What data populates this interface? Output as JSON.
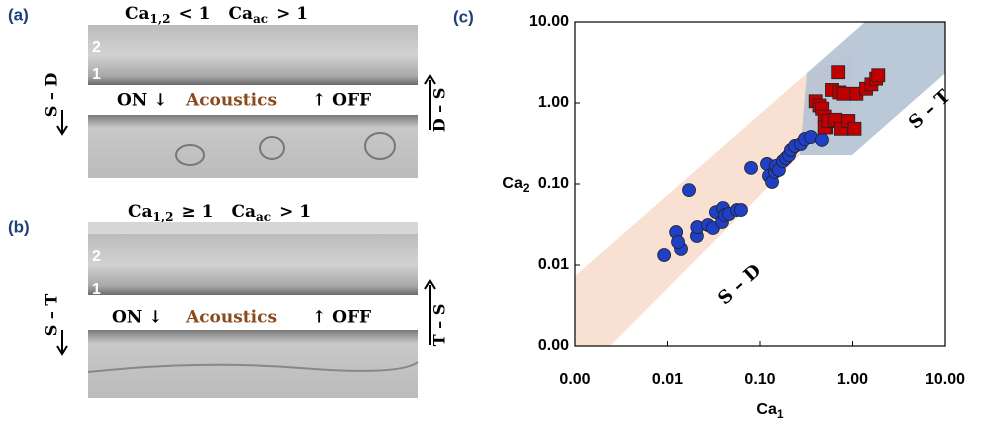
{
  "panel_a": {
    "label": "(a)",
    "condition": [
      {
        "text": "Ca",
        "sub": "1,2",
        "rel": "< 1"
      },
      {
        "text": "Ca",
        "sub": "ac",
        "rel": "> 1"
      }
    ],
    "layers": [
      "2",
      "1"
    ],
    "on": "ON ↓",
    "acoustics": "Acoustics",
    "off": "↑ OFF",
    "left": "S – D",
    "right": "D – S"
  },
  "panel_b": {
    "label": "(b)",
    "condition": [
      {
        "text": "Ca",
        "sub": "1,2",
        "rel": "≥ 1"
      },
      {
        "text": "Ca",
        "sub": "ac",
        "rel": "> 1"
      }
    ],
    "layers": [
      "2",
      "1"
    ],
    "on": "ON ↓",
    "acoustics": "Acoustics",
    "off": "↑ OFF",
    "left": "S – T",
    "right": "T – S"
  },
  "chart_data": {
    "type": "scatter",
    "panel": "(c)",
    "xlabel": "Ca",
    "xlabel_sub": "1",
    "ylabel": "Ca",
    "ylabel_sub": "2",
    "xscale": "log",
    "yscale": "log",
    "xlim": [
      0.001,
      10
    ],
    "ylim": [
      0.001,
      10
    ],
    "xticks": [
      {
        "value": 0.001,
        "label": "0.00"
      },
      {
        "value": 0.01,
        "label": "0.01"
      },
      {
        "value": 0.1,
        "label": "0.10"
      },
      {
        "value": 1,
        "label": "1.00"
      },
      {
        "value": 10,
        "label": "10.00"
      }
    ],
    "yticks": [
      {
        "value": 0.001,
        "label": "0.00"
      },
      {
        "value": 0.01,
        "label": "0.01"
      },
      {
        "value": 0.1,
        "label": "0.10"
      },
      {
        "value": 1,
        "label": "1.00"
      },
      {
        "value": 10,
        "label": "10.00"
      }
    ],
    "annotations": [
      "S – D",
      "S – T"
    ],
    "series": [
      {
        "color": "#1f3fc4",
        "marker": "circle",
        "x": [
          0.0092,
          0.0124,
          0.014,
          0.013,
          0.0171,
          0.0208,
          0.021,
          0.0274,
          0.031,
          0.0334,
          0.0388,
          0.0398,
          0.0419,
          0.0462,
          0.0564,
          0.0623,
          0.08,
          0.119,
          0.125,
          0.135,
          0.145,
          0.149,
          0.16,
          0.177,
          0.191,
          0.206,
          0.216,
          0.239,
          0.277,
          0.306,
          0.356,
          0.468
        ],
        "values": [
          0.0133,
          0.0255,
          0.0158,
          0.0192,
          0.084,
          0.0228,
          0.0294,
          0.0312,
          0.0286,
          0.045,
          0.034,
          0.0506,
          0.0414,
          0.0427,
          0.0477,
          0.0477,
          0.158,
          0.177,
          0.126,
          0.106,
          0.141,
          0.167,
          0.149,
          0.192,
          0.209,
          0.228,
          0.263,
          0.295,
          0.312,
          0.359,
          0.38,
          0.35
        ]
      },
      {
        "color": "#c00000",
        "marker": "square",
        "x": [
          0.4,
          0.44,
          0.47,
          0.5,
          0.52,
          0.7,
          0.6,
          0.5,
          0.72,
          0.55,
          0.65,
          0.8,
          0.75,
          0.9,
          1.05,
          1.1,
          1.4,
          1.6,
          1.8,
          1.9
        ],
        "values": [
          1.05,
          0.93,
          0.85,
          0.68,
          0.5,
          2.4,
          1.45,
          0.5,
          1.35,
          0.6,
          0.62,
          1.3,
          0.48,
          0.6,
          0.48,
          1.3,
          1.5,
          1.7,
          2.0,
          2.2
        ]
      }
    ]
  }
}
